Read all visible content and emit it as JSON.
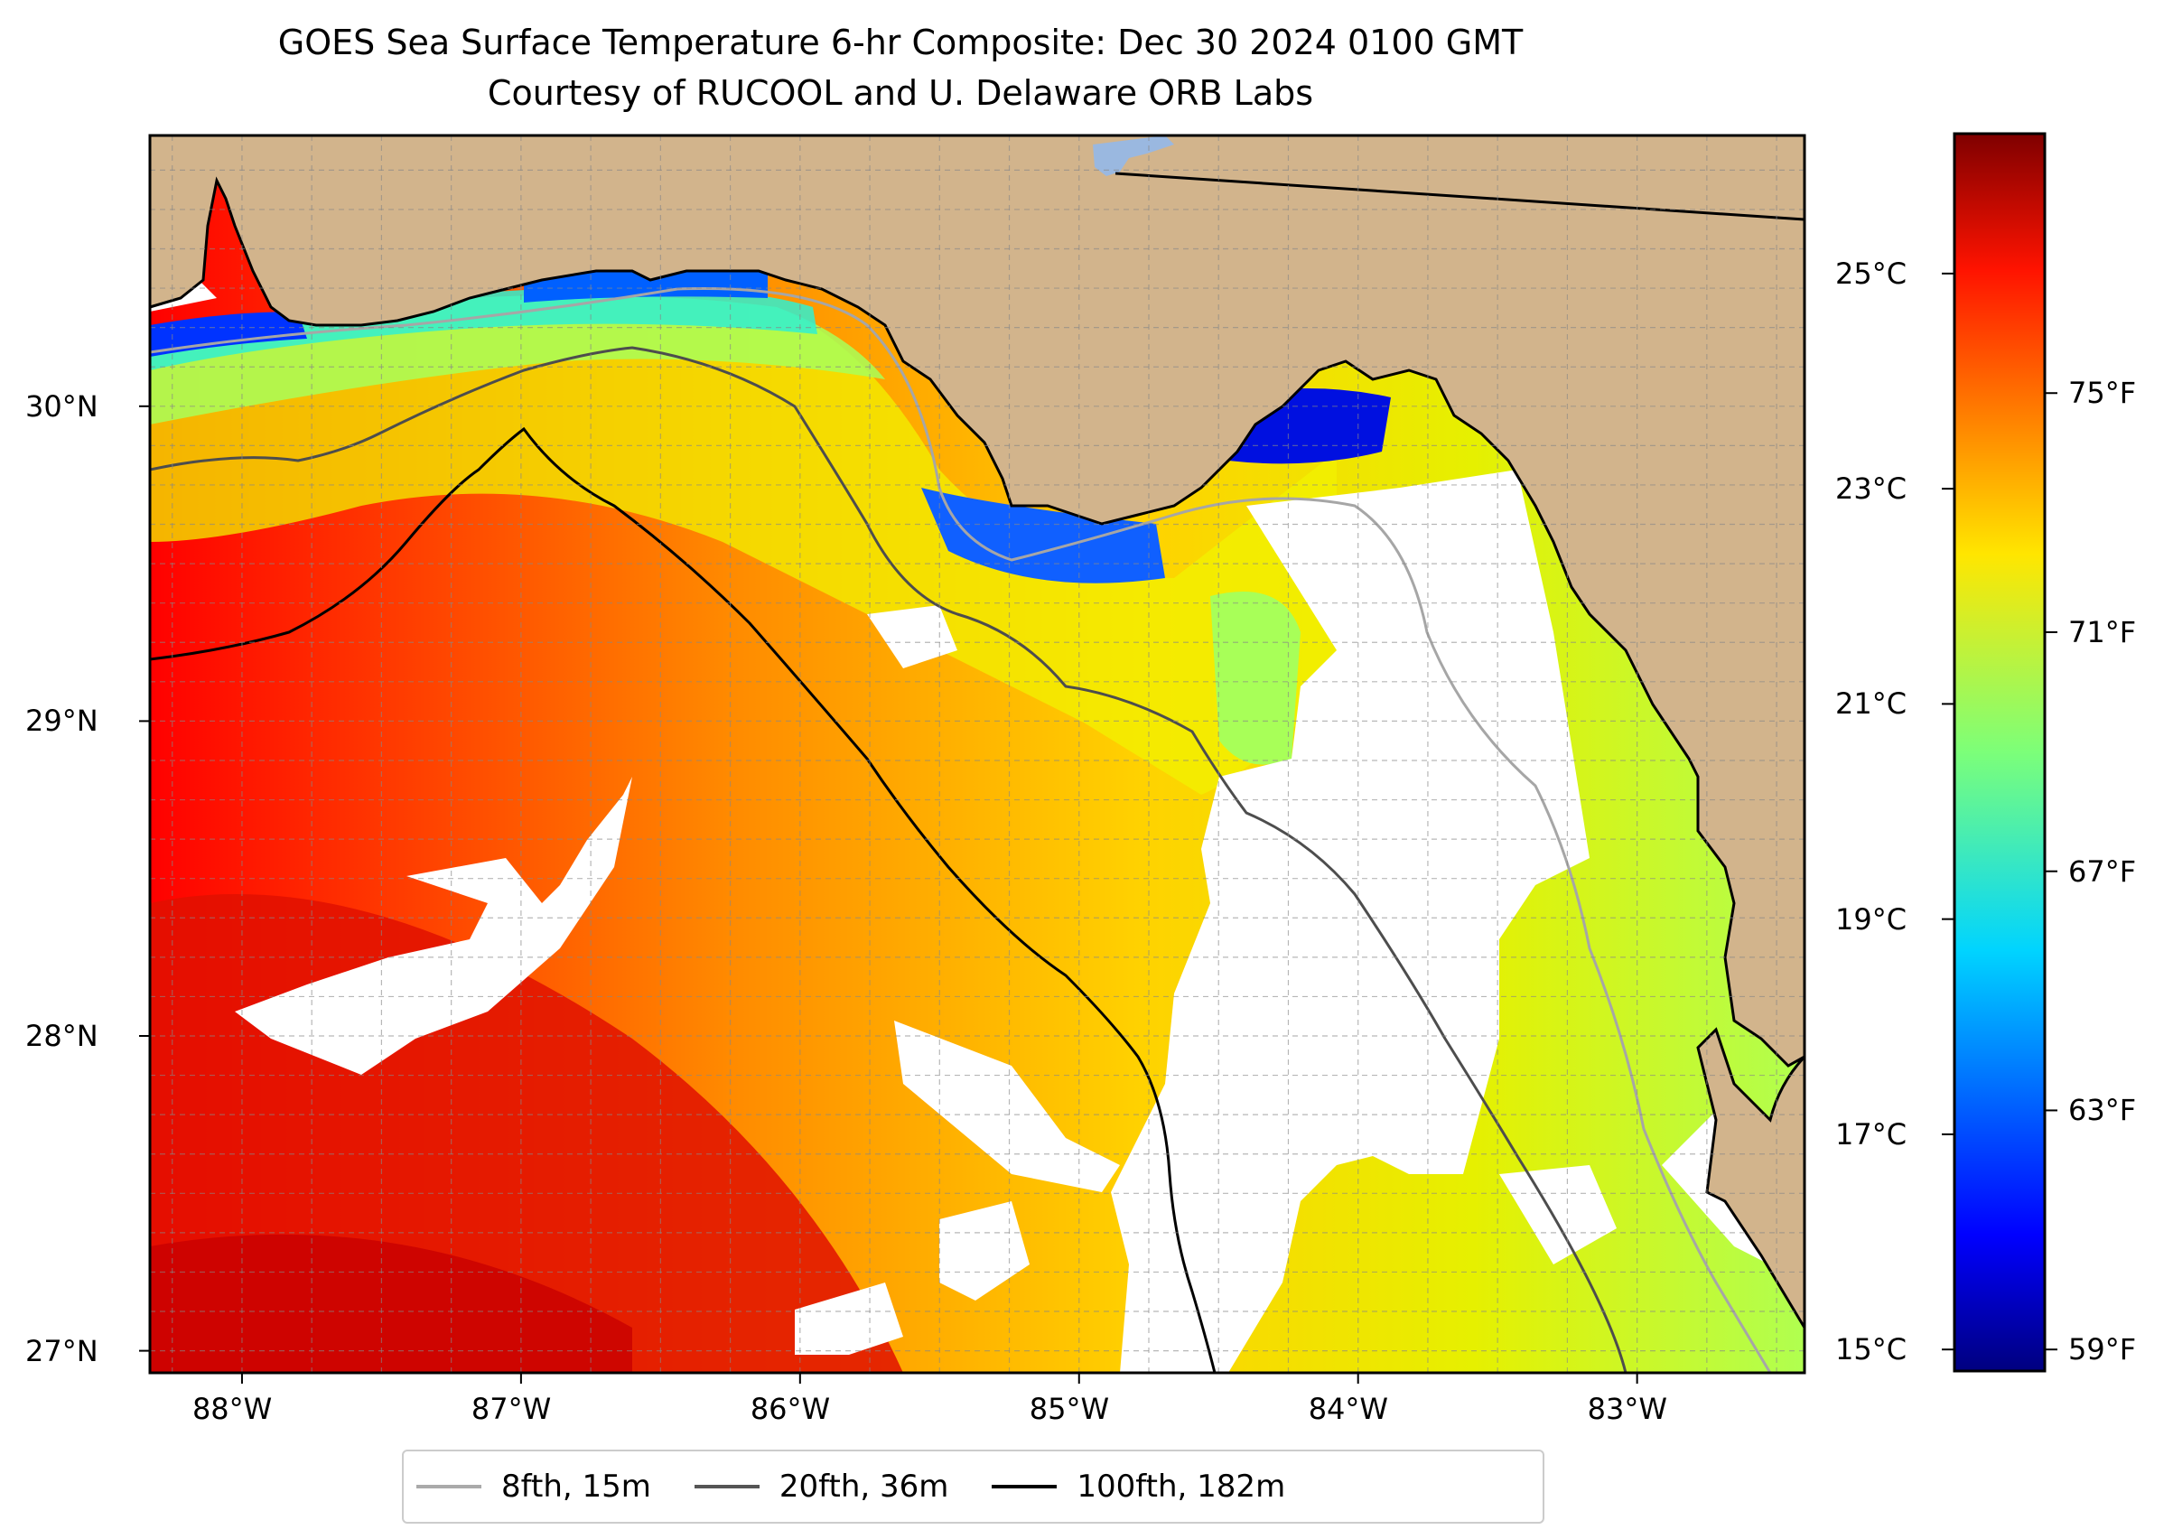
{
  "title": "GOES Sea Surface Temperature 6-hr Composite: Dec 30 2024 0100 GMT",
  "subtitle": "Courtesy of RUCOOL and U. Delaware ORB Labs",
  "map": {
    "extent_lon": [
      -88.33,
      -82.4
    ],
    "extent_lat": [
      26.93,
      30.86
    ],
    "land_color": "#d2b48c",
    "nodata_color": "#ffffff",
    "lon_ticks": [
      {
        "value": -88,
        "label": "88°W"
      },
      {
        "value": -87,
        "label": "87°W"
      },
      {
        "value": -86,
        "label": "86°W"
      },
      {
        "value": -85,
        "label": "85°W"
      },
      {
        "value": -84,
        "label": "84°W"
      },
      {
        "value": -83,
        "label": "83°W"
      }
    ],
    "lat_ticks": [
      {
        "value": 30,
        "label": "30°N"
      },
      {
        "value": 29,
        "label": "29°N"
      },
      {
        "value": 28,
        "label": "28°N"
      },
      {
        "value": 27,
        "label": "27°N"
      }
    ],
    "gridlines": true,
    "gridline_style": "dashed grey"
  },
  "legend": {
    "placement": "bottom-center",
    "items": [
      {
        "label": "8fth, 15m",
        "color": "#aaaaaa"
      },
      {
        "label": "20fth, 36m",
        "color": "#555555"
      },
      {
        "label": "100fth, 182m",
        "color": "#000000"
      }
    ]
  },
  "colorbar": {
    "colormap": "jet",
    "range_c": [
      14.8,
      26.3
    ],
    "celsius_ticks": [
      {
        "value": 25,
        "label": "25°C"
      },
      {
        "value": 23,
        "label": "23°C"
      },
      {
        "value": 21,
        "label": "21°C"
      },
      {
        "value": 19,
        "label": "19°C"
      },
      {
        "value": 17,
        "label": "17°C"
      },
      {
        "value": 15,
        "label": "15°C"
      }
    ],
    "fahrenheit_ticks": [
      {
        "value": 75,
        "label": "75°F"
      },
      {
        "value": 71,
        "label": "71°F"
      },
      {
        "value": 67,
        "label": "67°F"
      },
      {
        "value": 63,
        "label": "63°F"
      },
      {
        "value": 59,
        "label": "59°F"
      }
    ]
  }
}
